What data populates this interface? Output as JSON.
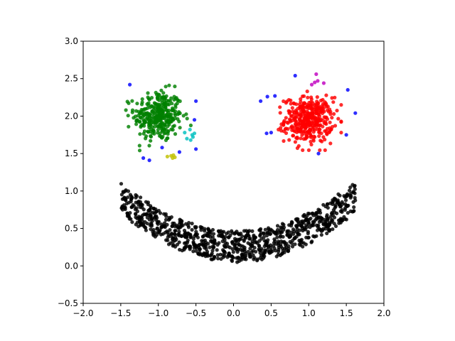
{
  "chart_data": {
    "type": "scatter",
    "title": "",
    "xlabel": "",
    "ylabel": "",
    "xlim": [
      -2.0,
      2.0
    ],
    "ylim": [
      -0.5,
      3.0
    ],
    "grid": false,
    "legend": "none",
    "x_ticks": [
      "−2.0",
      "−1.5",
      "−1.0",
      "−0.5",
      "0.0",
      "0.5",
      "1.0",
      "1.5",
      "2.0"
    ],
    "x_tick_values": [
      -2.0,
      -1.5,
      -1.0,
      -0.5,
      0.0,
      0.5,
      1.0,
      1.5,
      2.0
    ],
    "y_ticks": [
      "−0.5",
      "0.0",
      "0.5",
      "1.0",
      "1.5",
      "2.0",
      "2.5",
      "3.0"
    ],
    "y_tick_values": [
      -0.5,
      0.0,
      0.5,
      1.0,
      1.5,
      2.0,
      2.5,
      3.0
    ],
    "series": [
      {
        "color": "#008000",
        "cluster": {
          "kind": "blob",
          "center": [
            -1.0,
            2.0
          ],
          "spread": [
            0.16,
            0.17
          ],
          "count": 330
        }
      },
      {
        "color": "#ff0000",
        "cluster": {
          "kind": "blob",
          "center": [
            1.0,
            1.95
          ],
          "spread": [
            0.16,
            0.15
          ],
          "count": 380
        }
      },
      {
        "color": "#000000",
        "cluster": {
          "kind": "smile",
          "x_range": [
            -1.5,
            1.62
          ],
          "curve_a": 0.27,
          "center": [
            0.05,
            0.05
          ],
          "thickness": 0.42,
          "count": 900
        }
      },
      {
        "color": "#0000ff",
        "values": [
          [
            -1.38,
            2.42
          ],
          [
            -1.2,
            1.44
          ],
          [
            -1.12,
            1.41
          ],
          [
            -0.95,
            1.58
          ],
          [
            -0.72,
            1.52
          ],
          [
            -0.52,
            1.95
          ],
          [
            -0.5,
            1.56
          ],
          [
            -0.5,
            2.2
          ],
          [
            0.45,
            2.26
          ],
          [
            0.5,
            1.78
          ],
          [
            0.55,
            2.27
          ],
          [
            0.36,
            2.2
          ],
          [
            0.82,
            2.54
          ],
          [
            1.13,
            1.5
          ],
          [
            1.5,
            1.75
          ],
          [
            1.52,
            2.35
          ],
          [
            1.62,
            2.04
          ],
          [
            0.44,
            1.77
          ]
        ]
      },
      {
        "color": "#00bfbf",
        "values": [
          [
            -0.58,
            1.82
          ],
          [
            -0.55,
            1.75
          ],
          [
            -0.62,
            1.7
          ],
          [
            -0.57,
            1.68
          ],
          [
            -0.52,
            1.77
          ],
          [
            -0.65,
            1.78
          ],
          [
            -0.54,
            1.72
          ]
        ]
      },
      {
        "color": "#bfbf00",
        "values": [
          [
            -0.88,
            1.46
          ],
          [
            -0.8,
            1.48
          ],
          [
            -0.78,
            1.45
          ],
          [
            -0.83,
            1.47
          ],
          [
            -0.81,
            1.44
          ]
        ]
      },
      {
        "color": "#bf00bf",
        "values": [
          [
            1.08,
            2.45
          ],
          [
            1.1,
            2.56
          ],
          [
            1.2,
            2.44
          ],
          [
            1.04,
            2.42
          ],
          [
            1.12,
            2.47
          ]
        ]
      }
    ]
  }
}
